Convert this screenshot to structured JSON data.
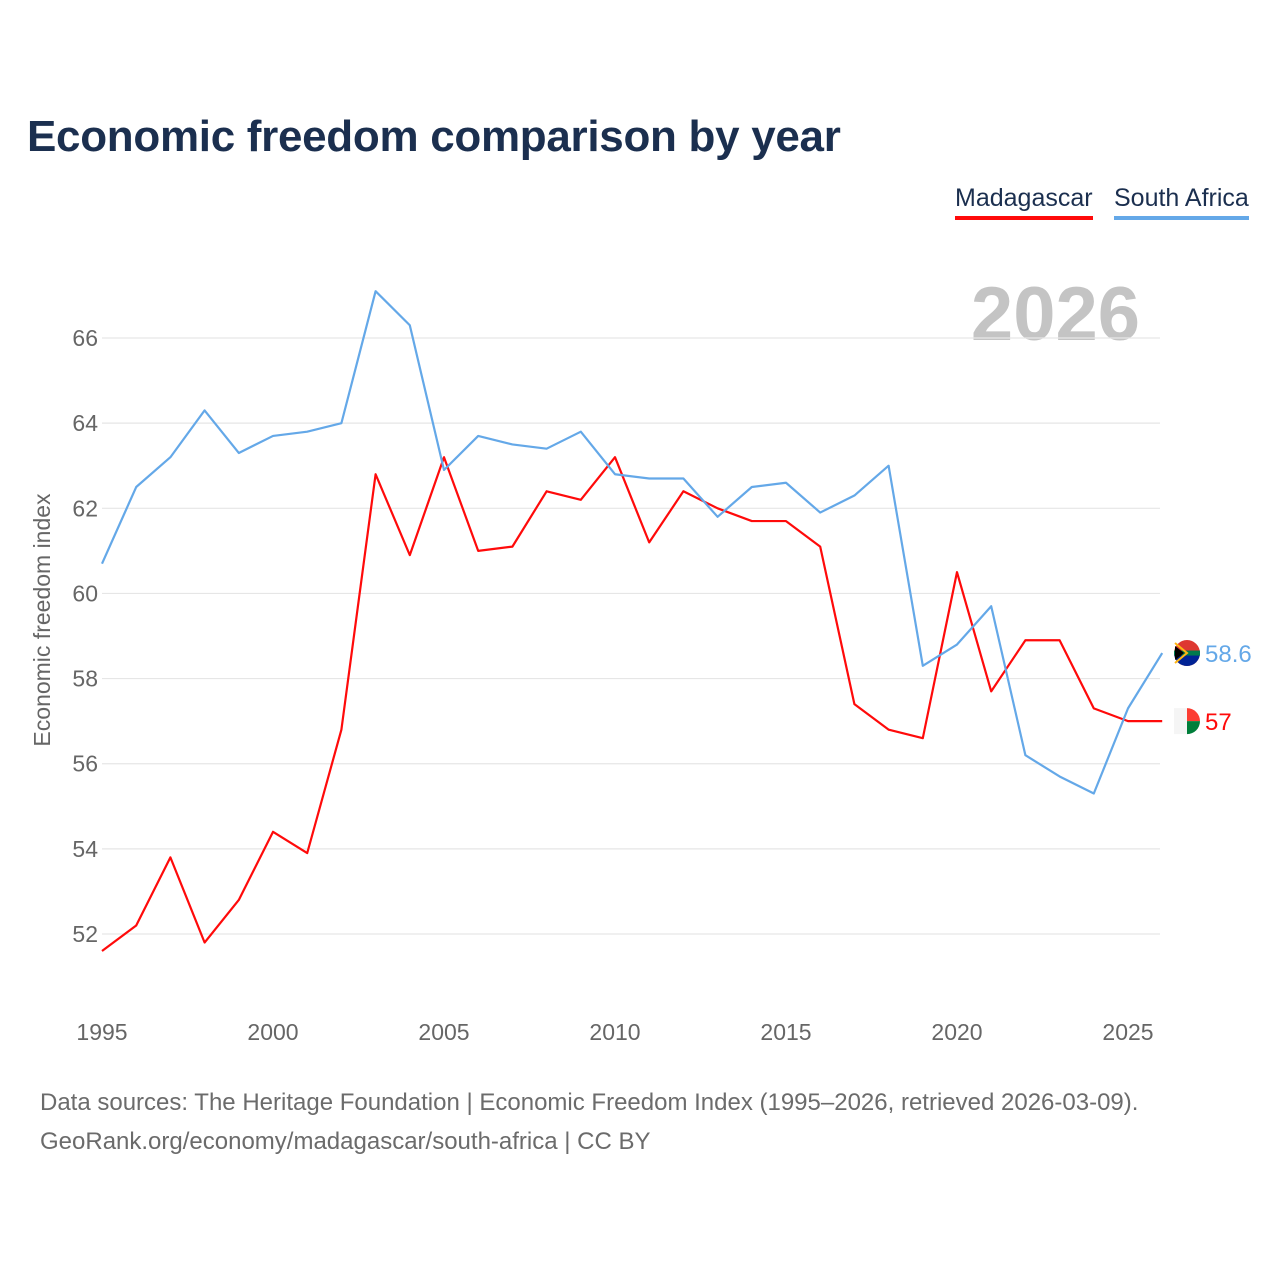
{
  "chart_data": {
    "type": "line",
    "title": "Economic freedom comparison by year",
    "xlabel": "",
    "ylabel": "Economic freedom index",
    "ylim": [
      51,
      67.5
    ],
    "xlim": [
      1995,
      2026
    ],
    "grid": true,
    "legend_position": "top-right",
    "watermark_year": "2026",
    "x_ticks": [
      "1995",
      "2000",
      "2005",
      "2010",
      "2015",
      "2020",
      "2025"
    ],
    "y_ticks": [
      "52",
      "54",
      "56",
      "58",
      "60",
      "62",
      "64",
      "66"
    ],
    "x": [
      1995,
      1996,
      1997,
      1998,
      1999,
      2000,
      2001,
      2002,
      2003,
      2004,
      2005,
      2006,
      2007,
      2008,
      2009,
      2010,
      2011,
      2012,
      2013,
      2014,
      2015,
      2016,
      2017,
      2018,
      2019,
      2020,
      2021,
      2022,
      2023,
      2024,
      2025,
      2026
    ],
    "series": [
      {
        "name": "Madagascar",
        "color": "#ff0a0a",
        "end_label": "57",
        "values": [
          51.6,
          52.2,
          53.8,
          51.8,
          52.8,
          54.4,
          53.9,
          56.8,
          62.8,
          60.9,
          63.2,
          61.0,
          61.1,
          62.4,
          62.2,
          63.2,
          61.2,
          62.4,
          62.0,
          61.7,
          61.7,
          61.1,
          57.4,
          56.8,
          56.6,
          60.5,
          57.7,
          58.9,
          58.9,
          57.3,
          57.0,
          57.0
        ]
      },
      {
        "name": "South Africa",
        "color": "#64a8e8",
        "end_label": "58.6",
        "values": [
          60.7,
          62.5,
          63.2,
          64.3,
          63.3,
          63.7,
          63.8,
          64.0,
          67.1,
          66.3,
          62.9,
          63.7,
          63.5,
          63.4,
          63.8,
          62.8,
          62.7,
          62.7,
          61.8,
          62.5,
          62.6,
          61.9,
          62.3,
          63.0,
          58.3,
          58.8,
          59.7,
          56.2,
          55.7,
          55.3,
          57.3,
          58.6
        ]
      }
    ]
  },
  "footer": {
    "line1": "Data sources: The Heritage Foundation | Economic Freedom Index (1995–2026, retrieved 2026-03-09).",
    "line2": "GeoRank.org/economy/madagascar/south-africa | CC BY"
  }
}
